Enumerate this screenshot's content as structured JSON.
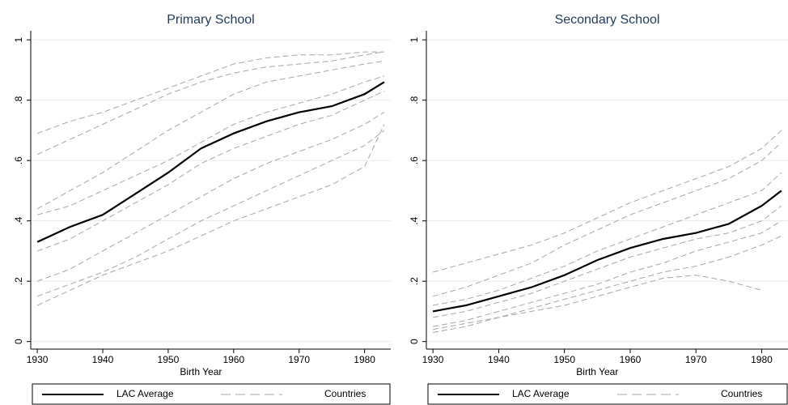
{
  "chart_data": [
    {
      "type": "line",
      "title": "Primary School",
      "xlabel": "Birth Year",
      "x": [
        1930,
        1935,
        1940,
        1945,
        1950,
        1955,
        1960,
        1965,
        1970,
        1975,
        1980,
        1983
      ],
      "xlim": [
        1929,
        1984
      ],
      "xticks": [
        1930,
        1940,
        1950,
        1960,
        1970,
        1980
      ],
      "ylim": [
        -0.025,
        1.03
      ],
      "yticks": [
        0,
        {
          "value": 0.2,
          "label": ".2"
        },
        {
          "value": 0.4,
          "label": ".4"
        },
        {
          "value": 0.6,
          "label": ".6"
        },
        {
          "value": 0.8,
          "label": ".8"
        },
        1
      ],
      "grid": true,
      "series": [
        {
          "name": "LAC Average",
          "color": "#000000",
          "values": [
            0.33,
            0.38,
            0.42,
            0.49,
            0.56,
            0.64,
            0.69,
            0.73,
            0.76,
            0.78,
            0.82,
            0.86
          ]
        },
        {
          "name": "Countries",
          "color": "#a6a6a6",
          "lines": [
            [
              0.69,
              0.73,
              0.76,
              0.8,
              0.84,
              0.88,
              0.92,
              0.94,
              0.95,
              0.95,
              0.96,
              0.96
            ],
            [
              0.62,
              0.67,
              0.72,
              0.77,
              0.82,
              0.86,
              0.89,
              0.91,
              0.92,
              0.93,
              0.95,
              0.96
            ],
            [
              0.44,
              0.5,
              0.56,
              0.63,
              0.7,
              0.76,
              0.82,
              0.86,
              0.88,
              0.9,
              0.92,
              0.93
            ],
            [
              0.42,
              0.45,
              0.5,
              0.55,
              0.6,
              0.66,
              0.72,
              0.76,
              0.79,
              0.82,
              0.86,
              0.88
            ],
            [
              0.3,
              0.34,
              0.4,
              0.46,
              0.52,
              0.59,
              0.64,
              0.68,
              0.72,
              0.75,
              0.8,
              0.83
            ],
            [
              0.2,
              0.24,
              0.3,
              0.36,
              0.42,
              0.48,
              0.54,
              0.59,
              0.63,
              0.67,
              0.72,
              0.76
            ],
            [
              0.15,
              0.19,
              0.23,
              0.28,
              0.34,
              0.4,
              0.45,
              0.5,
              0.55,
              0.6,
              0.65,
              0.7
            ],
            [
              0.12,
              0.17,
              0.22,
              0.26,
              0.3,
              0.35,
              0.4,
              0.44,
              0.48,
              0.52,
              0.58,
              0.72
            ]
          ]
        }
      ]
    },
    {
      "type": "line",
      "title": "Secondary School",
      "xlabel": "Birth Year",
      "x": [
        1930,
        1935,
        1940,
        1945,
        1950,
        1955,
        1960,
        1965,
        1970,
        1975,
        1980,
        1983
      ],
      "xlim": [
        1929,
        1984
      ],
      "xticks": [
        1930,
        1940,
        1950,
        1960,
        1970,
        1980
      ],
      "ylim": [
        -0.025,
        1.03
      ],
      "yticks": [
        0,
        {
          "value": 0.2,
          "label": ".2"
        },
        {
          "value": 0.4,
          "label": ".4"
        },
        {
          "value": 0.6,
          "label": ".6"
        },
        {
          "value": 0.8,
          "label": ".8"
        },
        1
      ],
      "grid": true,
      "series": [
        {
          "name": "LAC Average",
          "color": "#000000",
          "values": [
            0.1,
            0.12,
            0.15,
            0.18,
            0.22,
            0.27,
            0.31,
            0.34,
            0.36,
            0.39,
            0.45,
            0.5
          ]
        },
        {
          "name": "Countries",
          "color": "#a6a6a6",
          "lines": [
            [
              0.23,
              0.26,
              0.29,
              0.32,
              0.36,
              0.41,
              0.46,
              0.5,
              0.54,
              0.58,
              0.64,
              0.7
            ],
            [
              0.15,
              0.18,
              0.22,
              0.26,
              0.32,
              0.37,
              0.42,
              0.46,
              0.5,
              0.54,
              0.6,
              0.66
            ],
            [
              0.12,
              0.14,
              0.17,
              0.21,
              0.25,
              0.3,
              0.34,
              0.38,
              0.42,
              0.46,
              0.5,
              0.56
            ],
            [
              0.08,
              0.1,
              0.13,
              0.16,
              0.2,
              0.24,
              0.28,
              0.31,
              0.34,
              0.36,
              0.4,
              0.45
            ],
            [
              0.05,
              0.07,
              0.1,
              0.13,
              0.16,
              0.19,
              0.23,
              0.26,
              0.3,
              0.33,
              0.36,
              0.4
            ],
            [
              0.03,
              0.05,
              0.08,
              0.11,
              0.14,
              0.17,
              0.2,
              0.23,
              0.25,
              0.28,
              0.32,
              0.35
            ],
            [
              0.04,
              0.06,
              0.08,
              0.1,
              0.12,
              0.15,
              0.18,
              0.21,
              0.22,
              0.2,
              0.17,
              null
            ]
          ]
        }
      ]
    }
  ]
}
